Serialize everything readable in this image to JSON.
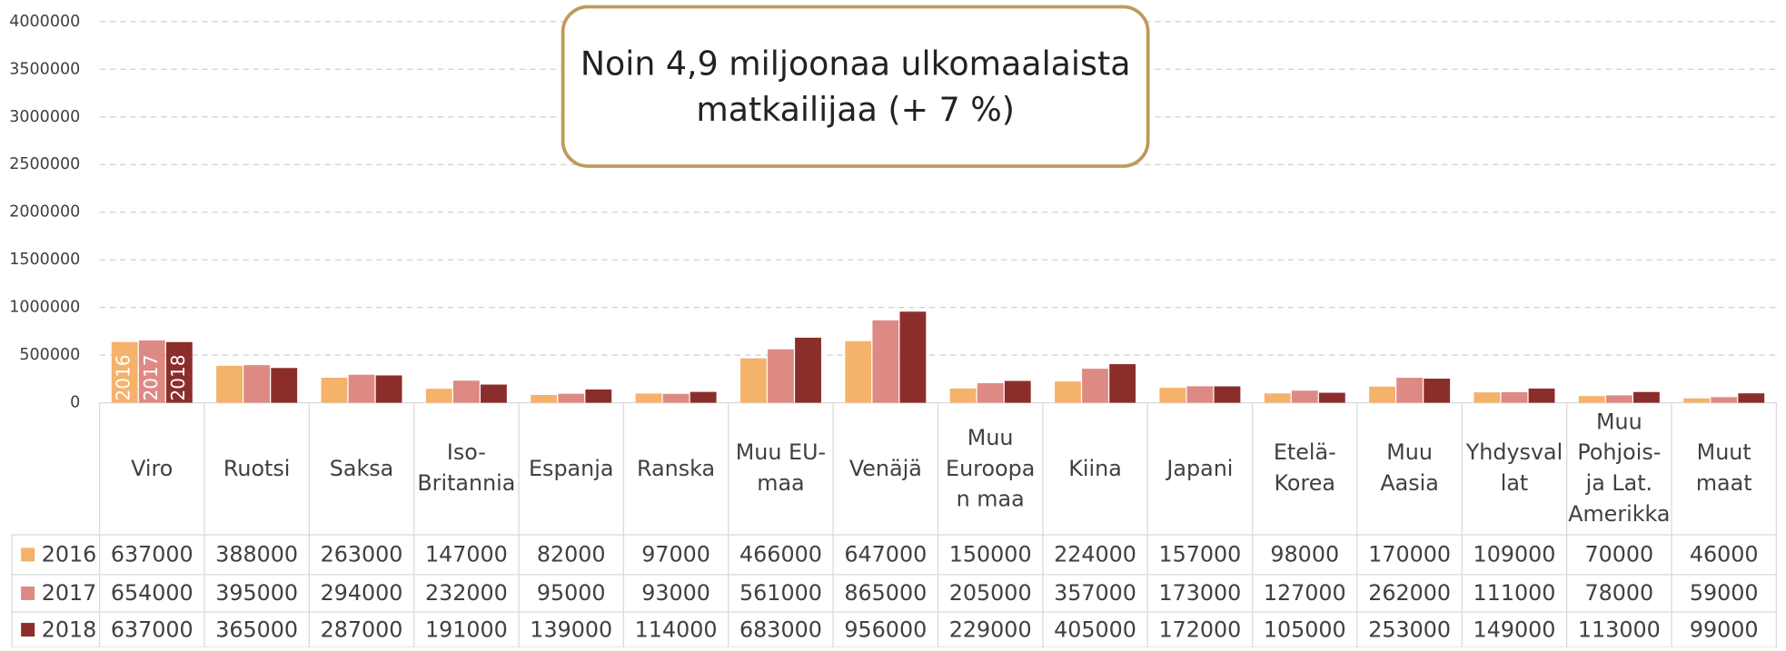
{
  "chart_data": {
    "type": "bar",
    "annotation": [
      "Noin 4,9 miljoonaa ulkomaalaista",
      "matkailijaa (+ 7 %)"
    ],
    "categories": [
      "Viro",
      "Ruotsi",
      "Saksa",
      "Iso-Britannia",
      "Espanja",
      "Ranska",
      "Muu EU-maa",
      "Venäjä",
      "Muu Euroopan maa",
      "Kiina",
      "Japani",
      "Etelä-Korea",
      "Muu Aasia",
      "Yhdysvallat",
      "Muu Pohjois-ja Lat. Amerikka",
      "Muut maat"
    ],
    "series": [
      {
        "name": "2016",
        "color": "#f5b26b",
        "values": [
          637000,
          388000,
          263000,
          147000,
          82000,
          97000,
          466000,
          647000,
          150000,
          224000,
          157000,
          98000,
          170000,
          109000,
          70000,
          46000
        ]
      },
      {
        "name": "2017",
        "color": "#de8a84",
        "values": [
          654000,
          395000,
          294000,
          232000,
          95000,
          93000,
          561000,
          865000,
          205000,
          357000,
          173000,
          127000,
          262000,
          111000,
          78000,
          59000
        ]
      },
      {
        "name": "2018",
        "color": "#8b2e2b",
        "values": [
          637000,
          365000,
          287000,
          191000,
          139000,
          114000,
          683000,
          956000,
          229000,
          405000,
          172000,
          105000,
          253000,
          149000,
          113000,
          99000
        ]
      }
    ],
    "ylim": [
      0,
      4000000
    ],
    "yticks": [
      0,
      500000,
      1000000,
      1500000,
      2000000,
      2500000,
      3000000,
      3500000,
      4000000
    ],
    "grid": true
  }
}
